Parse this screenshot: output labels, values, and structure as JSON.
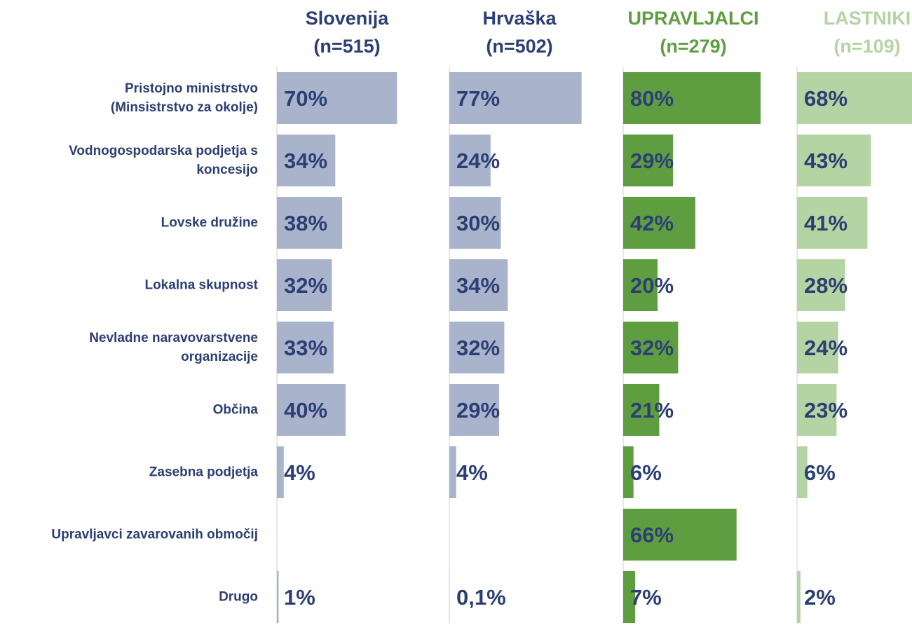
{
  "chart_data": {
    "type": "bar",
    "orientation": "horizontal",
    "categories": [
      "Pristojno ministrstvo\n(Minsistrstvo za okolje)",
      "Vodnogospodarska podjetja s\nkoncesijo",
      "Lovske družine",
      "Lokalna skupnost",
      "Nevladne naravovarstvene\norganizacije",
      "Občina",
      "Zasebna podjetja",
      "Upravljavci zavarovanih območij",
      "Drugo"
    ],
    "xlim": [
      0,
      100
    ],
    "series": [
      {
        "name": "Slovenija\n(n=515)",
        "color": "#a9b4cc",
        "header_color": "#2c3f74",
        "values": [
          70,
          34,
          38,
          32,
          33,
          40,
          4,
          null,
          1
        ],
        "value_labels": [
          "70%",
          "34%",
          "38%",
          "32%",
          "33%",
          "40%",
          "4%",
          null,
          "1%"
        ]
      },
      {
        "name": "Hrvaška\n(n=502)",
        "color": "#a9b4cc",
        "header_color": "#2c3f74",
        "values": [
          77,
          24,
          30,
          34,
          32,
          29,
          4,
          null,
          0.1
        ],
        "value_labels": [
          "77%",
          "24%",
          "30%",
          "34%",
          "32%",
          "29%",
          "4%",
          null,
          "0,1%"
        ]
      },
      {
        "name": "UPRAVLJALCI\n(n=279)",
        "color": "#5e9e40",
        "header_color": "#5e9e40",
        "values": [
          80,
          29,
          42,
          20,
          32,
          21,
          6,
          66,
          7
        ],
        "value_labels": [
          "80%",
          "29%",
          "42%",
          "20%",
          "32%",
          "21%",
          "6%",
          "66%",
          "7%"
        ]
      },
      {
        "name": "LASTNIKI\n(n=109)",
        "color": "#b5d4a3",
        "header_color": "#b5d4a3",
        "values": [
          68,
          43,
          41,
          28,
          24,
          23,
          6,
          null,
          2
        ],
        "value_labels": [
          "68%",
          "43%",
          "41%",
          "28%",
          "24%",
          "23%",
          "6%",
          null,
          "2%"
        ]
      }
    ]
  }
}
